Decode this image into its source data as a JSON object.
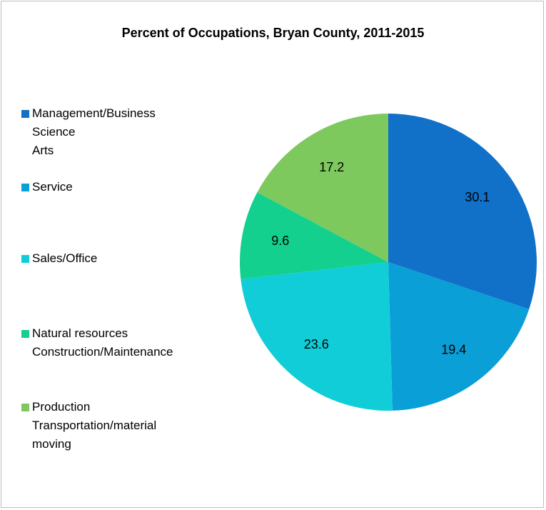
{
  "chart_data": {
    "type": "pie",
    "title": "Percent of Occupations, Bryan County, 2011-2015",
    "categories": [
      "Management/Business\nScience\nArts",
      "Service",
      "Sales/Office",
      "Natural resources\nConstruction/Maintenance",
      "Production\nTransportation/material\nmoving"
    ],
    "values": [
      30.1,
      19.4,
      23.6,
      9.6,
      17.2
    ],
    "colors": [
      "#1170c8",
      "#0a9fd6",
      "#10cdd8",
      "#14d08f",
      "#7dc95e"
    ],
    "legend": "left"
  }
}
